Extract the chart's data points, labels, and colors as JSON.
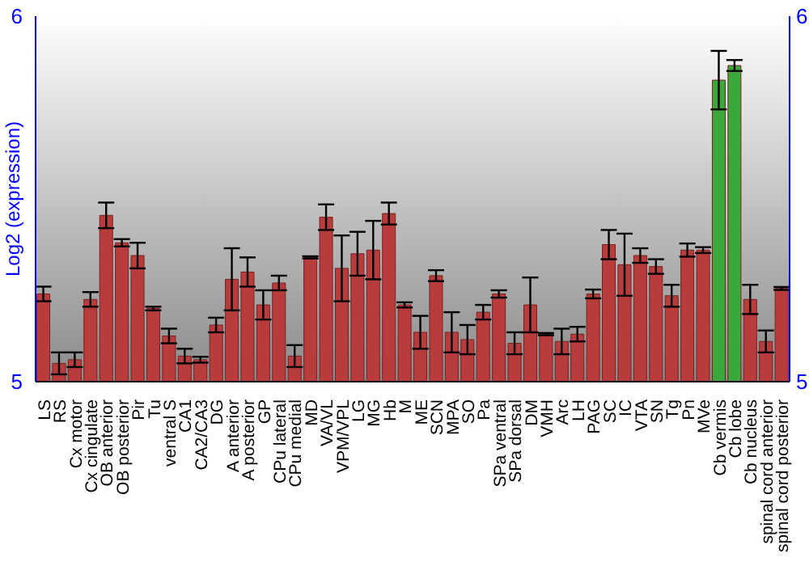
{
  "chart_data": {
    "type": "bar",
    "ylabel": "Log2 (expression)",
    "categories": [
      "LS",
      "RS",
      "Cx motor",
      "Cx cingulate",
      "OB anterior",
      "OB posterior",
      "Pir",
      "Tu",
      "ventral S",
      "CA1",
      "CA2/CA3",
      "DG",
      "A anterior",
      "A posterior",
      "GP",
      "CPu lateral",
      "CPu medial",
      "MD",
      "VA/VL",
      "VPM/VPL",
      "LG",
      "MG",
      "Hb",
      "M",
      "ME",
      "SCN",
      "MPA",
      "SO",
      "Pa",
      "SPa ventral",
      "SPa dorsal",
      "DM",
      "VMH",
      "Arc",
      "LH",
      "PAG",
      "SC",
      "IC",
      "VTA",
      "SN",
      "Tg",
      "Pn",
      "MVe",
      "Cb vermis",
      "Cb lobe",
      "Cb nucleus",
      "spinal cord anterior",
      "spinal cord posterior"
    ],
    "values": [
      5.24,
      5.05,
      5.06,
      5.225,
      5.455,
      5.38,
      5.345,
      5.2,
      5.125,
      5.07,
      5.06,
      5.155,
      5.28,
      5.3,
      5.21,
      5.27,
      5.07,
      5.34,
      5.45,
      5.31,
      5.35,
      5.36,
      5.46,
      5.21,
      5.135,
      5.29,
      5.135,
      5.115,
      5.19,
      5.24,
      5.105,
      5.21,
      5.13,
      5.11,
      5.13,
      5.24,
      5.375,
      5.32,
      5.345,
      5.315,
      5.235,
      5.36,
      5.36,
      5.825,
      5.865,
      5.225,
      5.11,
      5.255
    ],
    "errors": [
      0.02,
      0.03,
      0.02,
      0.02,
      0.035,
      0.01,
      0.035,
      0.005,
      0.02,
      0.02,
      0.008,
      0.02,
      0.085,
      0.04,
      0.04,
      0.02,
      0.03,
      0.003,
      0.035,
      0.09,
      0.06,
      0.08,
      0.03,
      0.007,
      0.045,
      0.015,
      0.055,
      0.04,
      0.02,
      0.01,
      0.03,
      0.075,
      0.003,
      0.035,
      0.02,
      0.012,
      0.04,
      0.085,
      0.02,
      0.02,
      0.03,
      0.018,
      0.008,
      0.08,
      0.015,
      0.04,
      0.03,
      0.004
    ],
    "colors": [
      "#b83c3c",
      "#b83c3c",
      "#b83c3c",
      "#b83c3c",
      "#b83c3c",
      "#b83c3c",
      "#b83c3c",
      "#b83c3c",
      "#b83c3c",
      "#b83c3c",
      "#b83c3c",
      "#b83c3c",
      "#b83c3c",
      "#b83c3c",
      "#b83c3c",
      "#b83c3c",
      "#b83c3c",
      "#b83c3c",
      "#b83c3c",
      "#b83c3c",
      "#b83c3c",
      "#b83c3c",
      "#b83c3c",
      "#b83c3c",
      "#b83c3c",
      "#b83c3c",
      "#b83c3c",
      "#b83c3c",
      "#b83c3c",
      "#b83c3c",
      "#b83c3c",
      "#b83c3c",
      "#b83c3c",
      "#b83c3c",
      "#b83c3c",
      "#b83c3c",
      "#b83c3c",
      "#b83c3c",
      "#b83c3c",
      "#b83c3c",
      "#b83c3c",
      "#b83c3c",
      "#b83c3c",
      "#3aa83a",
      "#3aa83a",
      "#b83c3c",
      "#b83c3c",
      "#b83c3c"
    ],
    "ylim": [
      5,
      6
    ],
    "yticks": [
      5,
      6
    ],
    "y2lim": [
      5,
      6
    ],
    "y2ticks": [
      5,
      6
    ]
  }
}
